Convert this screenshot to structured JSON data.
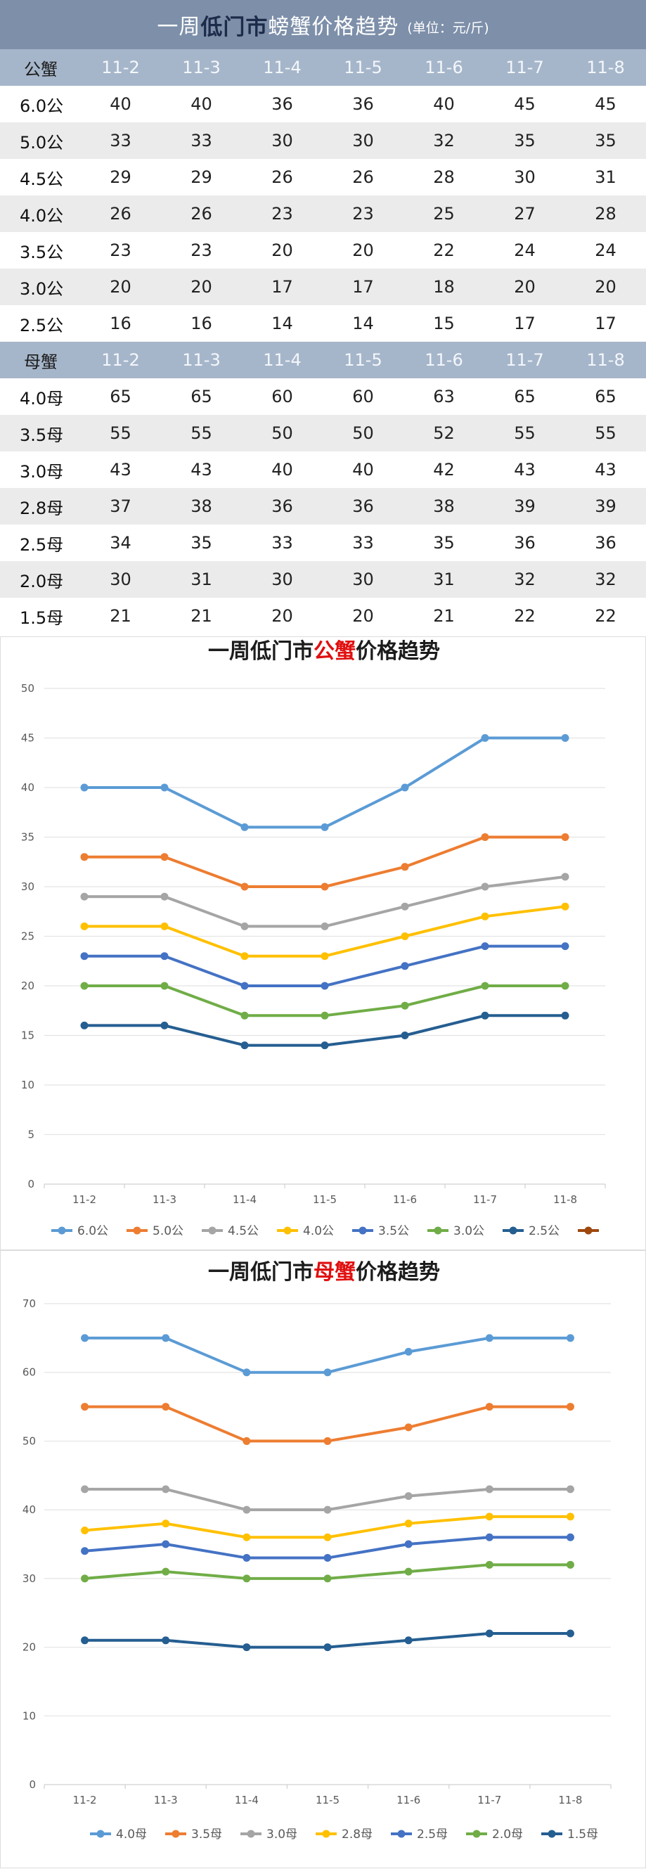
{
  "table": {
    "title_prefix": "一周",
    "title_market": "低门市",
    "title_suffix": "螃蟹价格趋势",
    "unit": "(单位：元/斤)",
    "dates": [
      "11-2",
      "11-3",
      "11-4",
      "11-5",
      "11-6",
      "11-7",
      "11-8"
    ],
    "male_header": "公蟹",
    "female_header": "母蟹",
    "male_rows": [
      {
        "label": "6.0公",
        "values": [
          40,
          40,
          36,
          36,
          40,
          45,
          45
        ]
      },
      {
        "label": "5.0公",
        "values": [
          33,
          33,
          30,
          30,
          32,
          35,
          35
        ]
      },
      {
        "label": "4.5公",
        "values": [
          29,
          29,
          26,
          26,
          28,
          30,
          31
        ]
      },
      {
        "label": "4.0公",
        "values": [
          26,
          26,
          23,
          23,
          25,
          27,
          28
        ]
      },
      {
        "label": "3.5公",
        "values": [
          23,
          23,
          20,
          20,
          22,
          24,
          24
        ]
      },
      {
        "label": "3.0公",
        "values": [
          20,
          20,
          17,
          17,
          18,
          20,
          20
        ]
      },
      {
        "label": "2.5公",
        "values": [
          16,
          16,
          14,
          14,
          15,
          17,
          17
        ]
      }
    ],
    "female_rows": [
      {
        "label": "4.0母",
        "values": [
          65,
          65,
          60,
          60,
          63,
          65,
          65
        ]
      },
      {
        "label": "3.5母",
        "values": [
          55,
          55,
          50,
          50,
          52,
          55,
          55
        ]
      },
      {
        "label": "3.0母",
        "values": [
          43,
          43,
          40,
          40,
          42,
          43,
          43
        ]
      },
      {
        "label": "2.8母",
        "values": [
          37,
          38,
          36,
          36,
          38,
          39,
          39
        ]
      },
      {
        "label": "2.5母",
        "values": [
          34,
          35,
          33,
          33,
          35,
          36,
          36
        ]
      },
      {
        "label": "2.0母",
        "values": [
          30,
          31,
          30,
          30,
          31,
          32,
          32
        ]
      },
      {
        "label": "1.5母",
        "values": [
          21,
          21,
          20,
          20,
          21,
          22,
          22
        ]
      }
    ]
  },
  "chart_data": [
    {
      "type": "line",
      "title_prefix": "一周低门市",
      "title_highlight": "公蟹",
      "title_suffix": "价格趋势",
      "x": [
        "11-2",
        "11-3",
        "11-4",
        "11-5",
        "11-6",
        "11-7",
        "11-8"
      ],
      "ylim": [
        0,
        50
      ],
      "yticks": [
        0,
        5,
        10,
        15,
        20,
        25,
        30,
        35,
        40,
        45,
        50
      ],
      "grid": true,
      "legend": "bottom",
      "series": [
        {
          "name": "6.0公",
          "color": "#5b9bd5",
          "values": [
            40,
            40,
            36,
            36,
            40,
            45,
            45
          ]
        },
        {
          "name": "5.0公",
          "color": "#ed7d31",
          "values": [
            33,
            33,
            30,
            30,
            32,
            35,
            35
          ]
        },
        {
          "name": "4.5公",
          "color": "#a5a5a5",
          "values": [
            29,
            29,
            26,
            26,
            28,
            30,
            31
          ]
        },
        {
          "name": "4.0公",
          "color": "#ffc000",
          "values": [
            26,
            26,
            23,
            23,
            25,
            27,
            28
          ]
        },
        {
          "name": "3.5公",
          "color": "#4472c4",
          "values": [
            23,
            23,
            20,
            20,
            22,
            24,
            24
          ]
        },
        {
          "name": "3.0公",
          "color": "#70ad47",
          "values": [
            20,
            20,
            17,
            17,
            18,
            20,
            20
          ]
        },
        {
          "name": "2.5公",
          "color": "#255e91",
          "values": [
            16,
            16,
            14,
            14,
            15,
            17,
            17
          ]
        }
      ],
      "extra_legend_color": "#9e480e"
    },
    {
      "type": "line",
      "title_prefix": "一周低门市",
      "title_highlight": "母蟹",
      "title_suffix": "价格趋势",
      "x": [
        "11-2",
        "11-3",
        "11-4",
        "11-5",
        "11-6",
        "11-7",
        "11-8"
      ],
      "ylim": [
        0,
        70
      ],
      "yticks": [
        0,
        10,
        20,
        30,
        40,
        50,
        60,
        70
      ],
      "grid": true,
      "legend": "bottom",
      "series": [
        {
          "name": "4.0母",
          "color": "#5b9bd5",
          "values": [
            65,
            65,
            60,
            60,
            63,
            65,
            65
          ]
        },
        {
          "name": "3.5母",
          "color": "#ed7d31",
          "values": [
            55,
            55,
            50,
            50,
            52,
            55,
            55
          ]
        },
        {
          "name": "3.0母",
          "color": "#a5a5a5",
          "values": [
            43,
            43,
            40,
            40,
            42,
            43,
            43
          ]
        },
        {
          "name": "2.8母",
          "color": "#ffc000",
          "values": [
            37,
            38,
            36,
            36,
            38,
            39,
            39
          ]
        },
        {
          "name": "2.5母",
          "color": "#4472c4",
          "values": [
            34,
            35,
            33,
            33,
            35,
            36,
            36
          ]
        },
        {
          "name": "2.0母",
          "color": "#70ad47",
          "values": [
            30,
            31,
            30,
            30,
            31,
            32,
            32
          ]
        },
        {
          "name": "1.5母",
          "color": "#255e91",
          "values": [
            21,
            21,
            20,
            20,
            21,
            22,
            22
          ]
        }
      ]
    }
  ]
}
